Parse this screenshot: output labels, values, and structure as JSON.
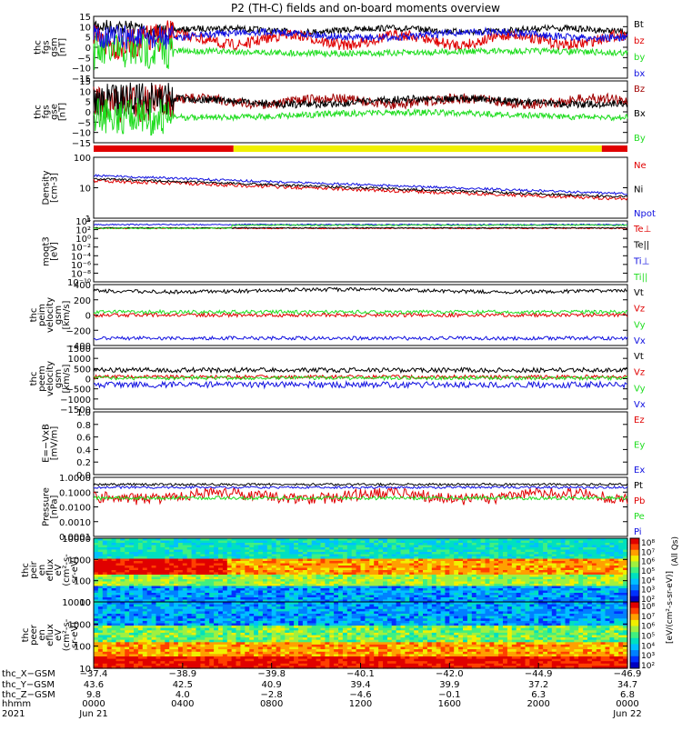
{
  "title": "P2 (TH-C) fields and on-board moments overview",
  "colors": {
    "black": "#000000",
    "red": "#e00000",
    "green": "#20dd20",
    "blue": "#1010e0",
    "darkred": "#a00000",
    "yellow": "#f0f000"
  },
  "chart_data": [
    {
      "id": "fgs_gsm",
      "type": "line",
      "ylabel_lines": [
        "thc",
        "fgs",
        "gsm",
        "[nT]"
      ],
      "ylim": [
        -15,
        15
      ],
      "yticks": [
        "15",
        "10",
        "5",
        "0",
        "−5",
        "−10",
        "−15"
      ],
      "series": [
        {
          "name": "Bt",
          "color": "#000000"
        },
        {
          "name": "bz",
          "color": "#e00000"
        },
        {
          "name": "by",
          "color": "#20dd20"
        },
        {
          "name": "bx",
          "color": "#1010e0"
        }
      ]
    },
    {
      "id": "fgs_gse",
      "type": "line",
      "ylabel_lines": [
        "thc",
        "fgs",
        "gse",
        "[nT]"
      ],
      "ylim": [
        -15,
        15
      ],
      "yticks": [
        "15",
        "10",
        "5",
        "0",
        "−5",
        "−10",
        "−15"
      ],
      "series": [
        {
          "name": "Bz",
          "color": "#a00000"
        },
        {
          "name": "Bx",
          "color": "#000000"
        },
        {
          "name": "By",
          "color": "#20dd20"
        }
      ]
    },
    {
      "id": "mode_bar",
      "type": "bar",
      "segments": [
        {
          "start": 0.0,
          "end": 0.262,
          "color": "#e00000"
        },
        {
          "start": 0.262,
          "end": 0.952,
          "color": "#f0f000"
        },
        {
          "start": 0.952,
          "end": 1.0,
          "color": "#e00000"
        }
      ]
    },
    {
      "id": "density",
      "type": "line",
      "ylabel_lines": [
        "Density",
        "[cm-3]"
      ],
      "yscale": "log",
      "ylim": [
        1,
        100
      ],
      "yticks": [
        "100",
        "10",
        "1"
      ],
      "series": [
        {
          "name": "Ne",
          "color": "#e00000"
        },
        {
          "name": "Ni",
          "color": "#000000"
        },
        {
          "name": "Npot",
          "color": "#1010e0"
        }
      ]
    },
    {
      "id": "temp",
      "type": "line",
      "ylabel_lines": [
        "moqt3",
        "[eV]"
      ],
      "yscale": "log",
      "yticks": [
        "10⁴",
        "10²",
        "10⁰",
        "10⁻²",
        "10⁻⁴",
        "10⁻⁶",
        "10⁻⁸",
        "10⁻¹⁰"
      ],
      "series": [
        {
          "name": "Te⊥",
          "color": "#e00000"
        },
        {
          "name": "Te||",
          "color": "#000000"
        },
        {
          "name": "Ti⊥",
          "color": "#1010e0"
        },
        {
          "name": "Ti||",
          "color": "#20dd20"
        }
      ]
    },
    {
      "id": "peim_vel",
      "type": "line",
      "ylabel_lines": [
        "thc",
        "peim",
        "velocity",
        "gsm",
        "[km/s]"
      ],
      "ylim": [
        -400,
        400
      ],
      "yticks": [
        "400",
        "200",
        "0",
        "−200",
        "−400"
      ],
      "series": [
        {
          "name": "Vt",
          "color": "#000000"
        },
        {
          "name": "Vz",
          "color": "#e00000"
        },
        {
          "name": "Vy",
          "color": "#20dd20"
        },
        {
          "name": "Vx",
          "color": "#1010e0"
        }
      ]
    },
    {
      "id": "peem_vel",
      "type": "line",
      "ylabel_lines": [
        "thc",
        "peem",
        "velocity",
        "gsm",
        "[km/s]"
      ],
      "ylim": [
        -1500,
        1500
      ],
      "yticks": [
        "1500",
        "1000",
        "500",
        "0",
        "−500",
        "−1000",
        "−1500"
      ],
      "series": [
        {
          "name": "Vt",
          "color": "#000000"
        },
        {
          "name": "Vz",
          "color": "#e00000"
        },
        {
          "name": "Vy",
          "color": "#20dd20"
        },
        {
          "name": "Vx",
          "color": "#1010e0"
        }
      ]
    },
    {
      "id": "efield",
      "type": "line",
      "ylabel_lines": [
        "E=−VxB",
        "[mV/m]"
      ],
      "ylim": [
        0,
        1
      ],
      "yticks": [
        "1.0",
        "0.8",
        "0.6",
        "0.4",
        "0.2",
        "0.0"
      ],
      "series": [
        {
          "name": "Ez",
          "color": "#e00000"
        },
        {
          "name": "Ey",
          "color": "#20dd20"
        },
        {
          "name": "Ex",
          "color": "#1010e0"
        }
      ]
    },
    {
      "id": "pressure",
      "type": "line",
      "ylabel_lines": [
        "Pressure",
        "[nPa]"
      ],
      "yscale": "log",
      "ylim": [
        0.0001,
        1
      ],
      "yticks": [
        "1.0000",
        "0.1000",
        "0.0100",
        "0.0010",
        "0.0001"
      ],
      "series": [
        {
          "name": "Pt",
          "color": "#000000"
        },
        {
          "name": "Pb",
          "color": "#e00000"
        },
        {
          "name": "Pe",
          "color": "#20dd20"
        },
        {
          "name": "Pi",
          "color": "#1010e0"
        }
      ]
    },
    {
      "id": "peir_spec",
      "type": "heatmap",
      "ylabel_lines": [
        "thc",
        "peir",
        "en",
        "eflux",
        "eV",
        "(cm²-s-",
        "sr-eV)"
      ],
      "yscale": "log",
      "yticks": [
        "10000",
        "1000",
        "100",
        "10"
      ]
    },
    {
      "id": "peer_spec",
      "type": "heatmap",
      "ylabel_lines": [
        "thc",
        "peer",
        "en",
        "eflux",
        "eV",
        "(cm²-s-",
        "sr-eV)"
      ],
      "yscale": "log",
      "yticks": [
        "10000",
        "1000",
        "100",
        "10"
      ]
    }
  ],
  "colorbar": {
    "ticks_top": [
      "10⁸",
      "10⁷",
      "10⁶",
      "10⁵",
      "10⁴",
      "10³",
      "10²"
    ],
    "ticks_bottom": [
      "10⁸",
      "10⁷",
      "10⁶",
      "10⁵",
      "10⁴",
      "10³",
      "10²"
    ],
    "label_right": "(All Qs)",
    "label_left": "[eV/(cm²-s-sr-eV)]"
  },
  "xaxis": {
    "row_labels": [
      "thc_X−GSM",
      "thc_Y−GSM",
      "thc_Z−GSM",
      "hhmm",
      "2021"
    ],
    "columns": [
      {
        "x_gsm": "−37.4",
        "y_gsm": "43.6",
        "z_gsm": "9.8",
        "hhmm": "0000",
        "date": "Jun 21"
      },
      {
        "x_gsm": "−38.9",
        "y_gsm": "42.5",
        "z_gsm": "4.0",
        "hhmm": "0400",
        "date": ""
      },
      {
        "x_gsm": "−39.8",
        "y_gsm": "40.9",
        "z_gsm": "−2.8",
        "hhmm": "0800",
        "date": ""
      },
      {
        "x_gsm": "−40.1",
        "y_gsm": "39.4",
        "z_gsm": "−4.6",
        "hhmm": "1200",
        "date": ""
      },
      {
        "x_gsm": "−42.0",
        "y_gsm": "39.9",
        "z_gsm": "−0.1",
        "hhmm": "1600",
        "date": ""
      },
      {
        "x_gsm": "−44.9",
        "y_gsm": "37.2",
        "z_gsm": "6.3",
        "hhmm": "2000",
        "date": ""
      },
      {
        "x_gsm": "−46.9",
        "y_gsm": "34.7",
        "z_gsm": "6.8",
        "hhmm": "0000",
        "date": "Jun 22"
      }
    ]
  }
}
